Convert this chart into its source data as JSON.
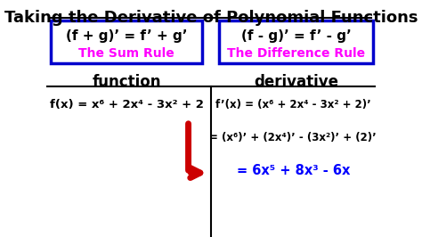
{
  "title": "Taking the Derivative of Polynomial Functions",
  "title_fontsize": 13,
  "title_underline": true,
  "bg_color": "#ffffff",
  "box1_text": "(f + g)’ = f’ + g’",
  "box1_subtext": "The Sum Rule",
  "box2_text": "(f - g)’ = f’ - g’",
  "box2_subtext": "The Difference Rule",
  "box_border_color": "#0000cc",
  "box_text_color": "#000000",
  "box_subtext_color": "#ff00ff",
  "col_header_left": "function",
  "col_header_right": "derivative",
  "header_color": "#000000",
  "func_text": "f(x) = x⁶ + 2x⁴ - 3x² + 2",
  "deriv_line1": "f’(x) = (x⁶ + 2x⁴ - 3x² + 2)’",
  "deriv_line2": "= (x⁶)’ + (2x⁴)’ - (3x²)’ + (2)’",
  "deriv_line3": "= 6x⁵ + 8x³ - 6x",
  "deriv_line3_color": "#0000ff",
  "func_color": "#000000",
  "deriv_color": "#000000",
  "arrow_color": "#cc0000",
  "divider_color": "#000000"
}
